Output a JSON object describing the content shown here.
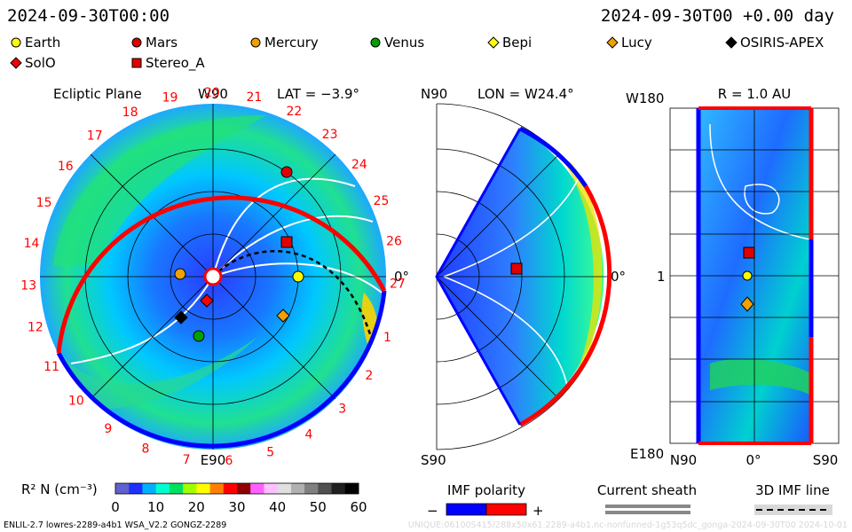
{
  "header": {
    "left_timestamp": "2024-09-30T00:00",
    "right_timestamp": "2024-09-30T00 +0.00 day"
  },
  "legend": {
    "items": [
      {
        "label": "Earth",
        "marker": "circle",
        "color": "#ffff00"
      },
      {
        "label": "Mars",
        "marker": "circle",
        "color": "#e00000"
      },
      {
        "label": "Mercury",
        "marker": "circle",
        "color": "#f0a000"
      },
      {
        "label": "Venus",
        "marker": "circle",
        "color": "#00a000"
      },
      {
        "label": "Bepi",
        "marker": "diamond",
        "color": "#ffff00"
      },
      {
        "label": "Lucy",
        "marker": "diamond",
        "color": "#f0a000"
      },
      {
        "label": "OSIRIS-APEX",
        "marker": "diamond",
        "color": "#000000"
      },
      {
        "label": "SolO",
        "marker": "diamond",
        "color": "#ff0000"
      },
      {
        "label": "Stereo_A",
        "marker": "square",
        "color": "#e00000"
      }
    ]
  },
  "panels": {
    "ecliptic": {
      "title": "Ecliptic Plane",
      "lat": "LAT = −3.9°",
      "top_label": "W90",
      "right_label": "0°",
      "bottom_label": "E90",
      "carrington_labels": [
        "1",
        "2",
        "3",
        "4",
        "5",
        "6",
        "7",
        "8",
        "9",
        "10",
        "11",
        "12",
        "13",
        "14",
        "15",
        "16",
        "17",
        "18",
        "19",
        "20",
        "21",
        "22",
        "23",
        "24",
        "25",
        "26",
        "27"
      ]
    },
    "meridional": {
      "top_left": "N90",
      "title": "LON = W24.4°",
      "right_label": "0°",
      "bottom_left": "S90"
    },
    "sphere": {
      "top_left": "W180",
      "title": "R = 1.0 AU",
      "left_mid": "1",
      "bottom_left": "E180",
      "bottom_labels": [
        "N90",
        "0°",
        "S90"
      ]
    }
  },
  "bottom": {
    "density_label": "R² N (cm⁻³)",
    "density_ticks": [
      "0",
      "10",
      "20",
      "30",
      "40",
      "50",
      "60"
    ],
    "density_colors": [
      "#6060d0",
      "#2030ff",
      "#00b0ff",
      "#00ffd0",
      "#00e060",
      "#a0ff00",
      "#ffff00",
      "#ff8000",
      "#ff0000",
      "#900000",
      "#ff60ff",
      "#ffc0ff",
      "#e0e0e0",
      "#b0b0b0",
      "#808080",
      "#505050",
      "#202020",
      "#000000"
    ],
    "imf_title": "IMF polarity",
    "imf_minus": "−",
    "imf_plus": "+",
    "imf_colors": [
      "#0000ff",
      "#ff0000"
    ],
    "sheath_title": "Current sheath",
    "imf_line_title": "3D IMF line"
  },
  "footer": {
    "left": "ENLIL-2.7 lowres-2289-a4b1 WSA_V2.2 GONGZ-2289",
    "right": "UNIQUE:06100S415/288x50x61.2289-a4b1.nc-nonfunned-1g53q5dc_gonga-2024-09-30T00    2024-10-01"
  },
  "chart_data": [
    {
      "type": "heatmap",
      "title": "Ecliptic Plane",
      "view": "polar r–longitude",
      "quantity": "R² N (cm⁻³)",
      "color_range": [
        0,
        60
      ],
      "latitude_deg": -3.9,
      "carrington_sectors": [
        1,
        2,
        3,
        4,
        5,
        6,
        7,
        8,
        9,
        10,
        11,
        12,
        13,
        14,
        15,
        16,
        17,
        18,
        19,
        20,
        21,
        22,
        23,
        24,
        25,
        26,
        27
      ],
      "bodies": [
        {
          "name": "Earth",
          "marker": "circle"
        },
        {
          "name": "Mars",
          "marker": "circle"
        },
        {
          "name": "Mercury",
          "marker": "circle"
        },
        {
          "name": "Venus",
          "marker": "circle"
        },
        {
          "name": "Bepi",
          "marker": "diamond"
        },
        {
          "name": "Lucy",
          "marker": "diamond"
        },
        {
          "name": "OSIRIS-APEX",
          "marker": "diamond"
        },
        {
          "name": "SolO",
          "marker": "diamond"
        },
        {
          "name": "Stereo_A",
          "marker": "square"
        }
      ]
    },
    {
      "type": "heatmap",
      "title": "LON = W24.4°",
      "view": "meridional",
      "latitude_range_deg": [
        -90,
        90
      ]
    },
    {
      "type": "heatmap",
      "title": "R = 1.0 AU",
      "view": "latitude–longitude",
      "x_range_deg": [
        90,
        -90
      ],
      "x_ticks": [
        "N90",
        "0°",
        "S90"
      ],
      "y_range_deg": [
        180,
        -180
      ],
      "y_ticks": [
        "W180",
        "E180"
      ]
    }
  ]
}
